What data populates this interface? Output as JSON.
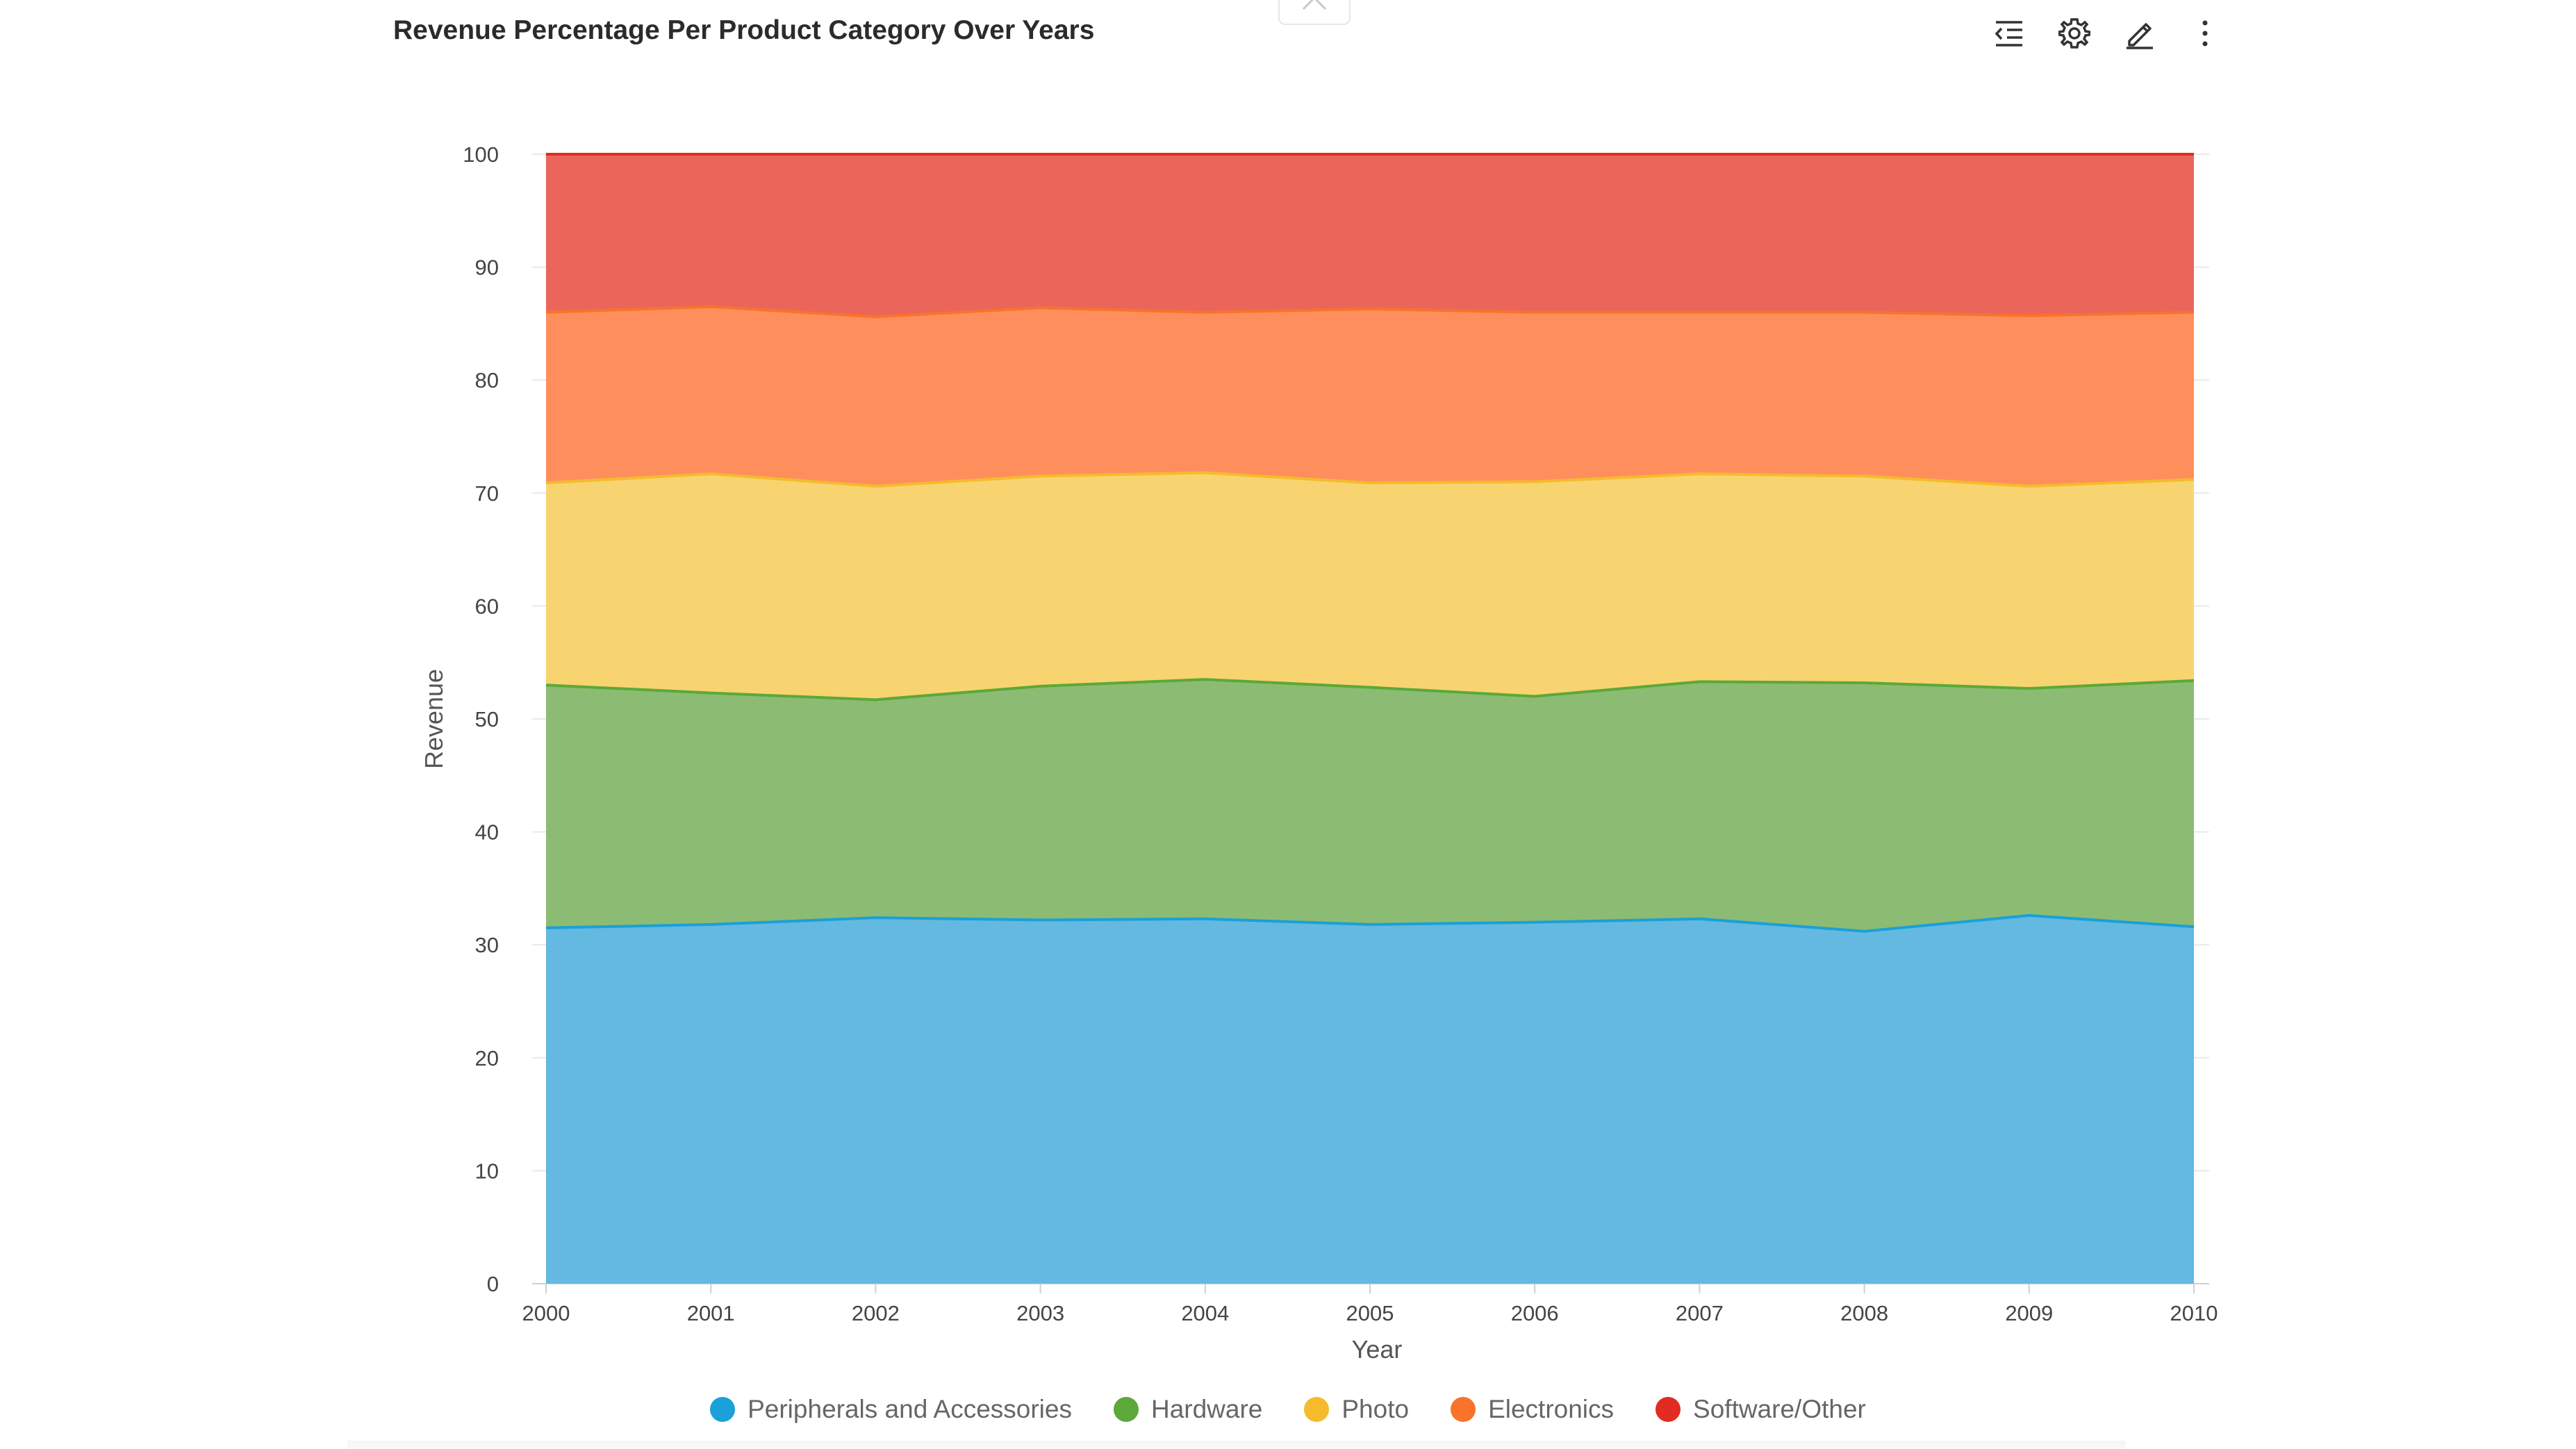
{
  "header": {
    "title": "Revenue Percentage Per Product Category Over Years",
    "toolbar": [
      {
        "icon": "indent-list-icon"
      },
      {
        "icon": "gear-icon"
      },
      {
        "icon": "pencil-icon"
      },
      {
        "icon": "more-vertical-icon"
      }
    ]
  },
  "chart_data": {
    "type": "area",
    "stacked": true,
    "title": "Revenue Percentage Per Product Category Over Years",
    "xlabel": "Year",
    "ylabel": "Revenue",
    "x": [
      "2000",
      "2001",
      "2002",
      "2003",
      "2004",
      "2005",
      "2006",
      "2007",
      "2008",
      "2009",
      "2010"
    ],
    "ylim": [
      0,
      100
    ],
    "yticks": [
      "0",
      "10",
      "20",
      "30",
      "40",
      "50",
      "60",
      "70",
      "80",
      "90",
      "100"
    ],
    "grid": true,
    "legend_position": "bottom",
    "series": [
      {
        "name": "Peripherals and Accessories",
        "color": "#1ba0d7",
        "fill": "#64b9e0",
        "values": [
          31.5,
          31.8,
          32.4,
          32.2,
          32.3,
          31.8,
          32.0,
          32.3,
          31.2,
          32.6,
          31.6
        ]
      },
      {
        "name": "Hardware",
        "color": "#5ca83a",
        "fill": "#8cbc73",
        "values": [
          21.5,
          20.5,
          19.3,
          20.7,
          21.2,
          21.0,
          20.0,
          21.0,
          22.0,
          20.1,
          21.8
        ]
      },
      {
        "name": "Photo",
        "color": "#f5bb2c",
        "fill": "#f7d46f",
        "values": [
          17.9,
          19.4,
          18.9,
          18.6,
          18.3,
          18.1,
          19.0,
          18.4,
          18.3,
          17.9,
          17.8
        ]
      },
      {
        "name": "Electronics",
        "color": "#f9732b",
        "fill": "#fe8f5d",
        "values": [
          15.1,
          14.8,
          15.0,
          14.9,
          14.2,
          15.4,
          15.0,
          14.3,
          14.5,
          15.1,
          14.8
        ]
      },
      {
        "name": "Software/Other",
        "color": "#e22b22",
        "fill": "#ea665a",
        "values": [
          14.0,
          13.5,
          14.4,
          13.6,
          14.0,
          13.7,
          14.0,
          14.0,
          14.0,
          14.3,
          14.0
        ]
      }
    ]
  }
}
